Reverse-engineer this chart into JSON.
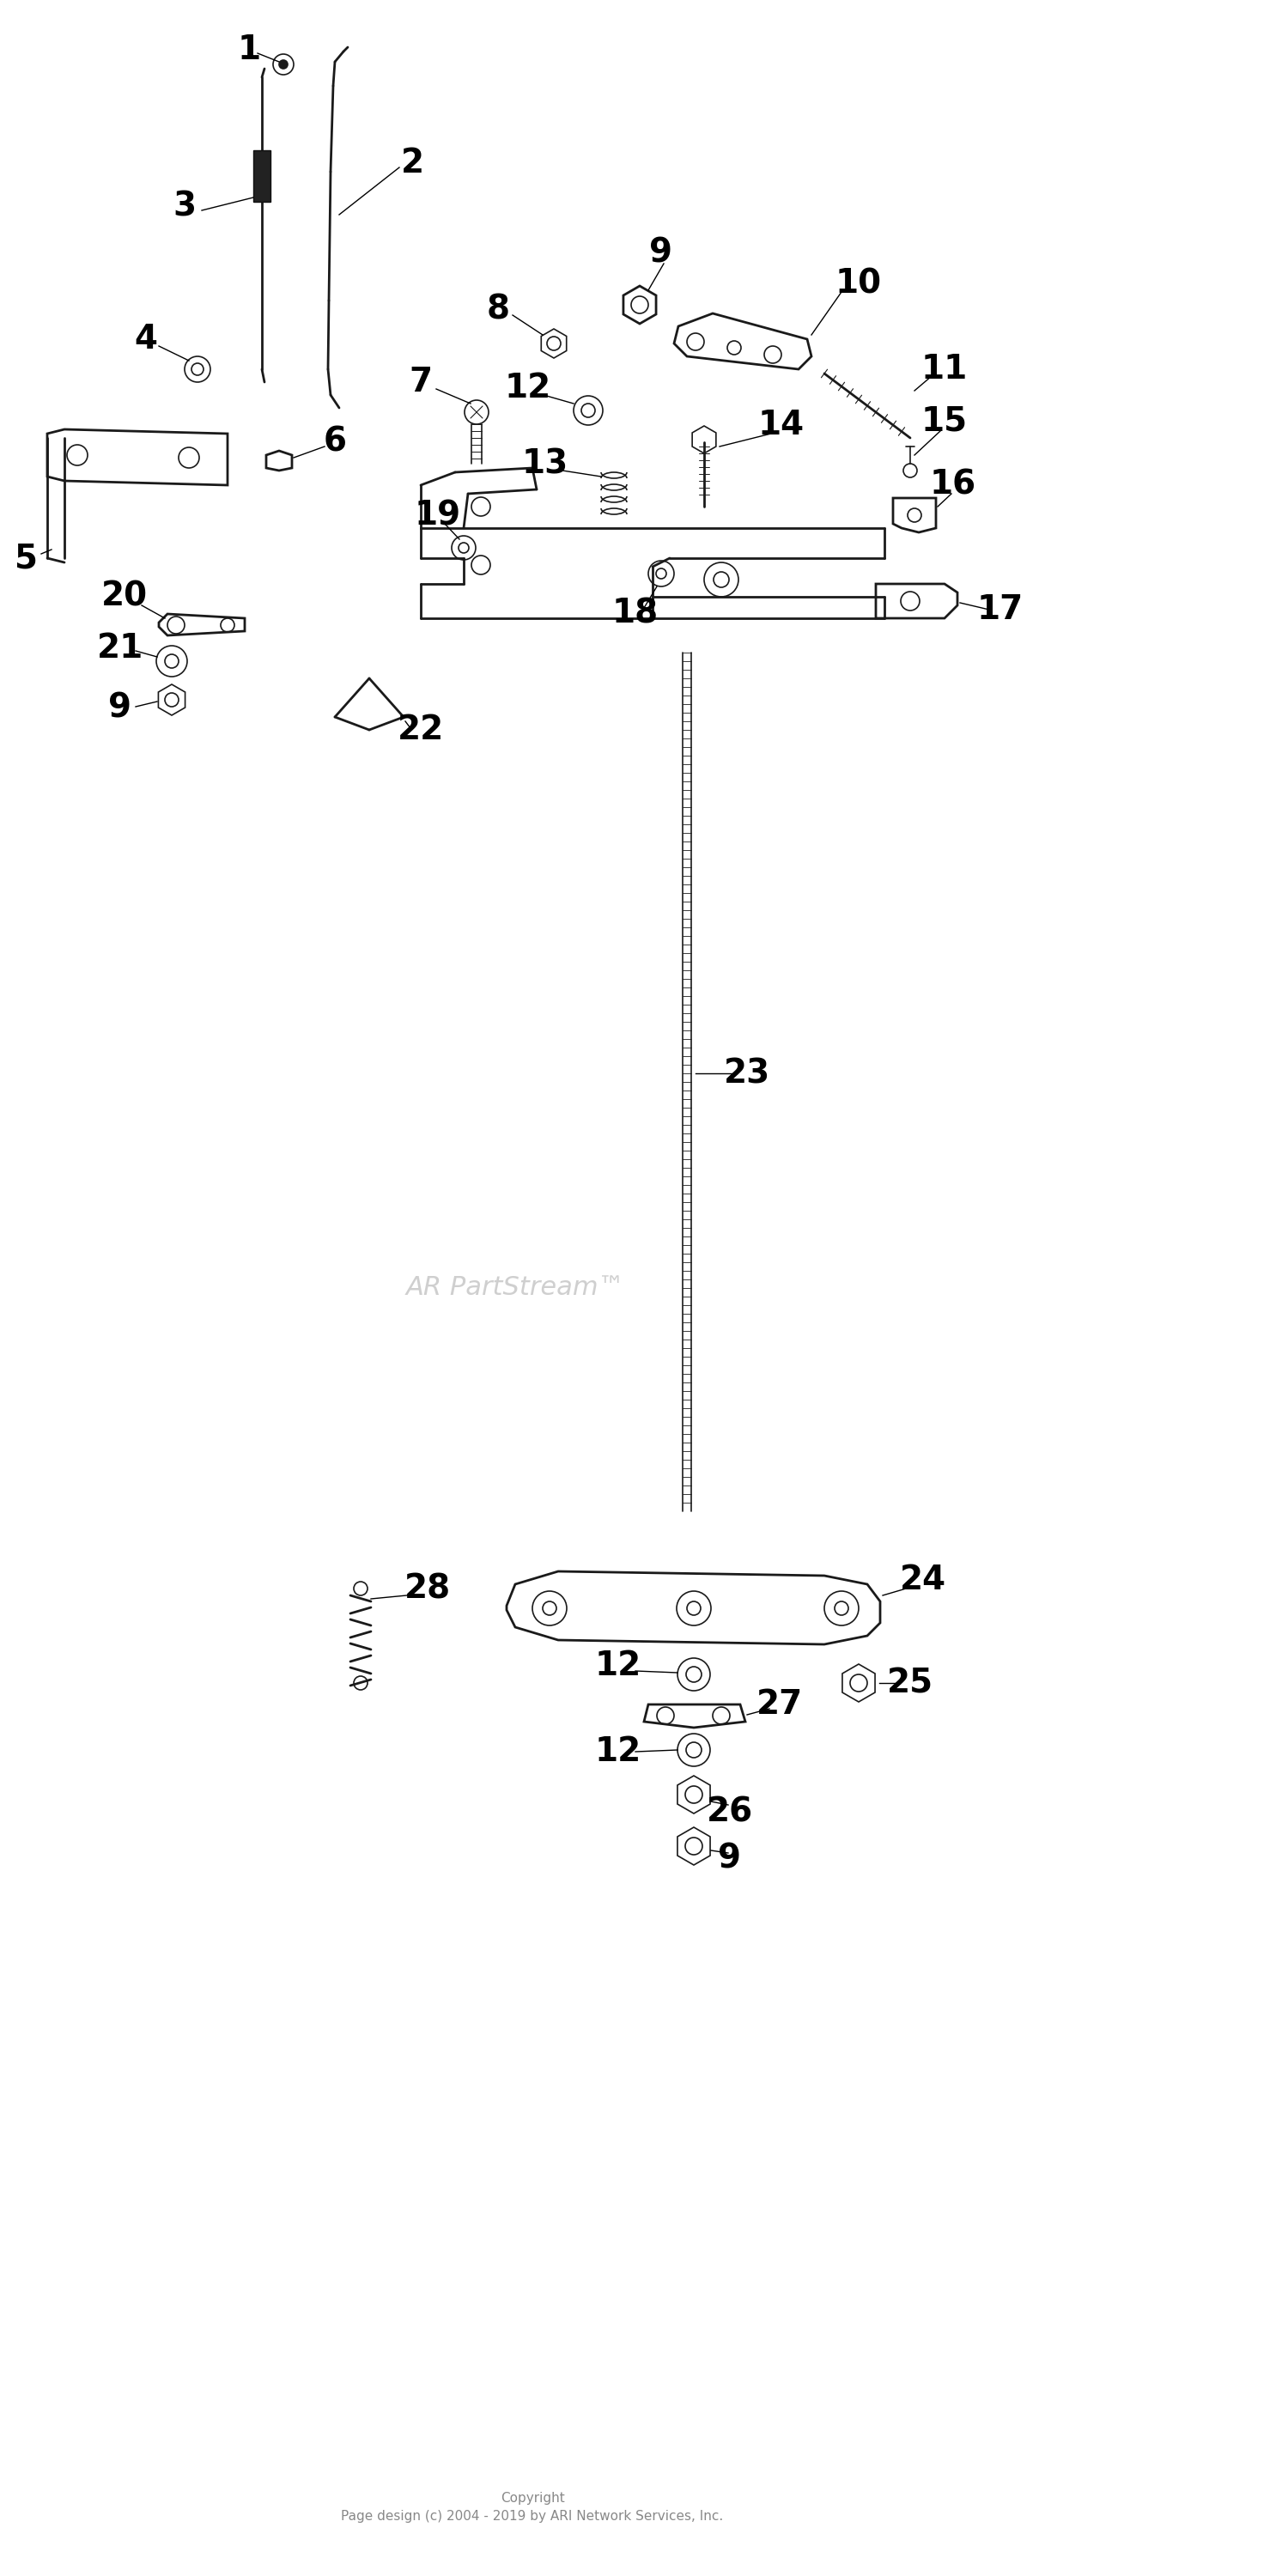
{
  "bg_color": "#ffffff",
  "fig_width": 15,
  "fig_height": 30,
  "copyright_text": "Copyright\nPage design (c) 2004 - 2019 by ARI Network Services, Inc.",
  "watermark": "AR PartStream™"
}
